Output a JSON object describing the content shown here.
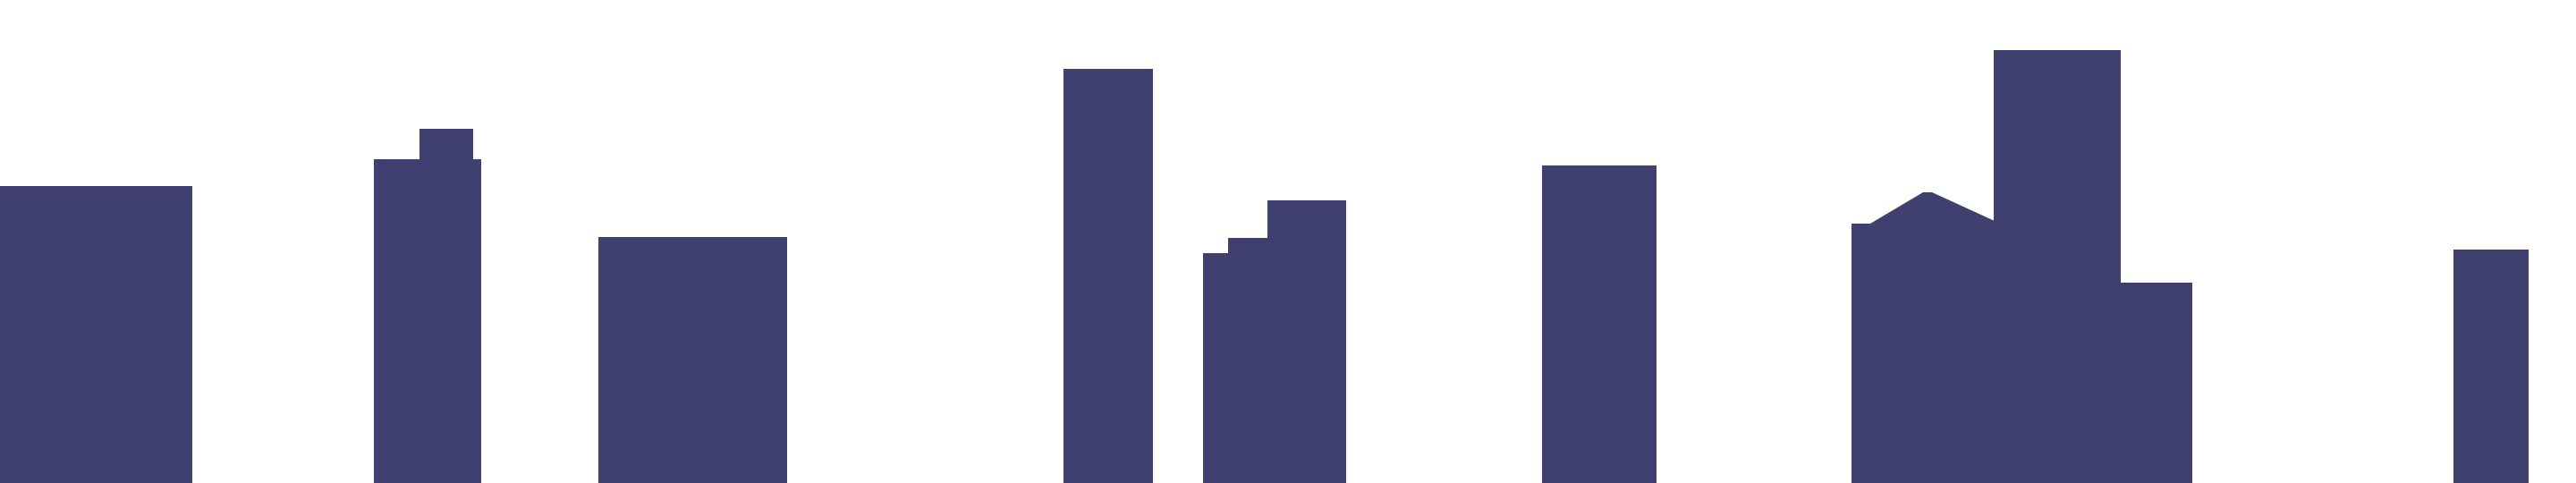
{
  "scene": {
    "kind": "city-skyline-silhouette",
    "background_color": "#ffffff",
    "building_color": "#404070"
  }
}
